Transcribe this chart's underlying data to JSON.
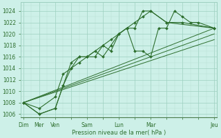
{
  "xlabel": "Pression niveau de la mer( hPa )",
  "background_color": "#cdf0e8",
  "grid_color_major": "#9dcfbf",
  "grid_color_minor": "#b8e0d4",
  "line_color": "#2d6e2d",
  "ylim": [
    1005.5,
    1025.5
  ],
  "ytick_vals": [
    1006,
    1008,
    1010,
    1012,
    1014,
    1016,
    1018,
    1020,
    1022,
    1024
  ],
  "xlim": [
    -0.15,
    12.15
  ],
  "xtick_labels": [
    "Dim",
    "Mer",
    "Ven",
    "",
    "Sam",
    "",
    "Lun",
    "",
    "Mar",
    "",
    "",
    "",
    "Jeu"
  ],
  "xtick_positions": [
    0,
    1,
    2,
    3,
    4,
    5,
    6,
    7,
    8,
    9,
    10,
    11,
    12
  ],
  "series1_x": [
    0,
    1,
    2,
    2.5,
    3,
    3.5,
    4,
    4.5,
    5,
    5.5,
    6,
    6.5,
    7,
    7.5,
    8,
    8.5,
    9,
    9.5,
    10,
    10.5,
    11,
    12
  ],
  "series1_y": [
    1008,
    1006,
    1007,
    1011,
    1015,
    1016,
    1016,
    1017,
    1016,
    1018,
    1020,
    1021,
    1017,
    1017,
    1016,
    1021,
    1021,
    1024,
    1023,
    1022,
    1022,
    1021
  ],
  "series2_x": [
    0,
    1,
    2,
    2.5,
    3,
    3.5,
    4,
    5,
    5.5,
    6,
    6.5,
    7,
    7.5,
    8,
    9,
    10,
    12
  ],
  "series2_y": [
    1008,
    1006,
    1007,
    1011,
    1014,
    1016,
    1016,
    1018,
    1017,
    1020,
    1021,
    1021,
    1024,
    1024,
    1022,
    1022,
    1021
  ],
  "series3_x": [
    0,
    1,
    2,
    2.5,
    3,
    3.5,
    4,
    4.5,
    5,
    5.5,
    6,
    6.5,
    7,
    7.5,
    8,
    9,
    12
  ],
  "series3_y": [
    1008,
    1007,
    1009,
    1013,
    1014,
    1015,
    1016,
    1016,
    1018,
    1019,
    1020,
    1021,
    1022,
    1023,
    1024,
    1022,
    1021
  ],
  "trend1_x": [
    0,
    12
  ],
  "trend1_y": [
    1008,
    1021
  ],
  "trend2_x": [
    0,
    12
  ],
  "trend2_y": [
    1008,
    1020
  ],
  "trend3_x": [
    0,
    12
  ],
  "trend3_y": [
    1008,
    1019
  ]
}
